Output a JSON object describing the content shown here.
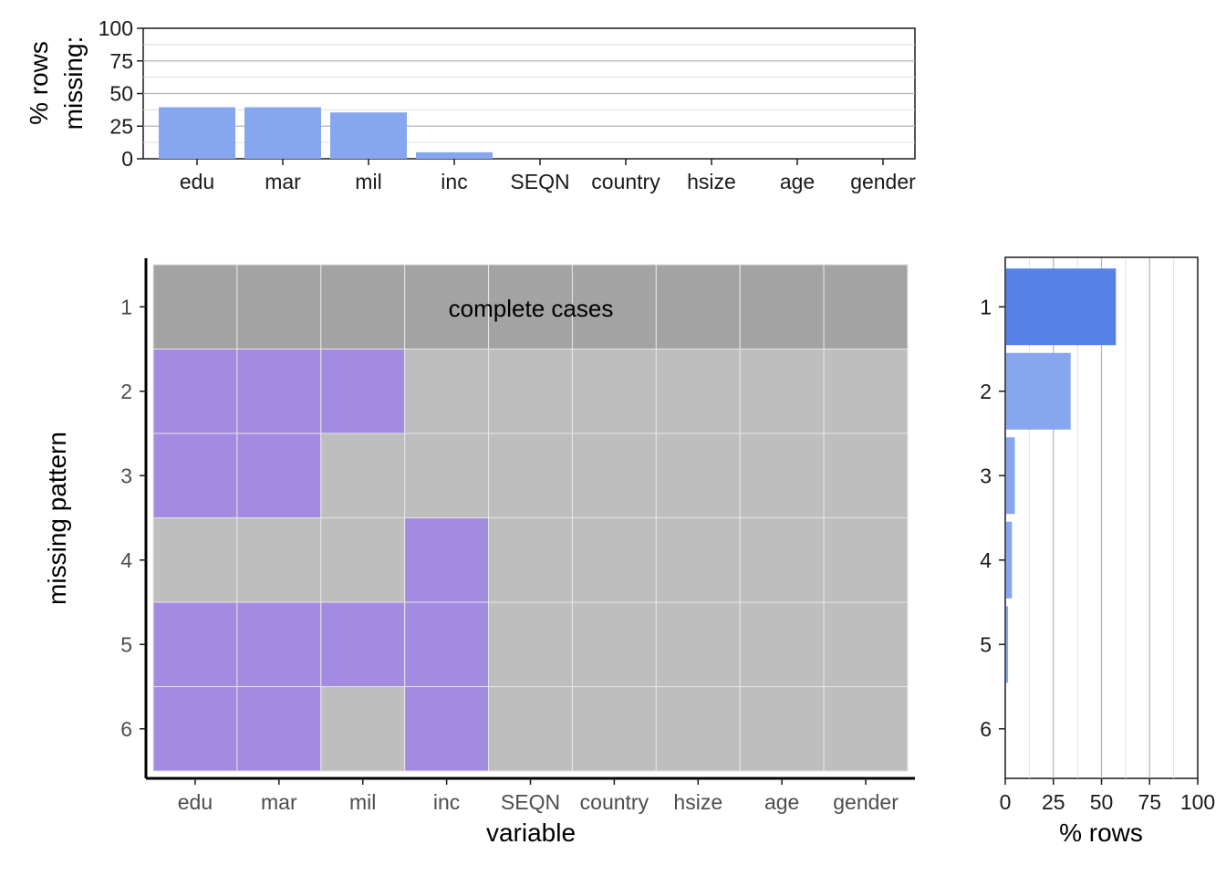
{
  "colors": {
    "bar": "#86a6ef",
    "bar_highlight": "#5581e8",
    "missing_tile": "#a48be2",
    "observed_tile": "#bebebe",
    "complete_row": "#a3a3a3",
    "grid": "#bdbdbd",
    "axis": "#1a1a1a"
  },
  "chart_data": [
    {
      "type": "bar",
      "panel": "top",
      "categories": [
        "edu",
        "mar",
        "mil",
        "inc",
        "SEQN",
        "country",
        "hsize",
        "age",
        "gender"
      ],
      "values": [
        39.5,
        39.5,
        35.5,
        5,
        0,
        0,
        0,
        0,
        0
      ],
      "ylabel": "% rows\nmissing:",
      "ylabel_line1": "% rows",
      "ylabel_line2": "missing:",
      "ylim": [
        0,
        100
      ],
      "yticks": [
        "0",
        "25",
        "50",
        "75",
        "100"
      ]
    },
    {
      "type": "heatmap",
      "panel": "main",
      "categories": [
        "edu",
        "mar",
        "mil",
        "inc",
        "SEQN",
        "country",
        "hsize",
        "age",
        "gender"
      ],
      "patterns": [
        "1",
        "2",
        "3",
        "4",
        "5",
        "6"
      ],
      "matrix": [
        [
          0,
          0,
          0,
          0,
          0,
          0,
          0,
          0,
          0
        ],
        [
          1,
          1,
          1,
          0,
          0,
          0,
          0,
          0,
          0
        ],
        [
          1,
          1,
          0,
          0,
          0,
          0,
          0,
          0,
          0
        ],
        [
          0,
          0,
          0,
          1,
          0,
          0,
          0,
          0,
          0
        ],
        [
          1,
          1,
          1,
          1,
          0,
          0,
          0,
          0,
          0
        ],
        [
          1,
          1,
          0,
          1,
          0,
          0,
          0,
          0,
          0
        ]
      ],
      "complete_cases_label": "complete cases",
      "xlabel": "variable",
      "ylabel": "missing pattern"
    },
    {
      "type": "bar",
      "panel": "right",
      "orientation": "horizontal",
      "categories": [
        "1",
        "2",
        "3",
        "4",
        "5",
        "6"
      ],
      "values": [
        57,
        33.5,
        4.5,
        3,
        1,
        0
      ],
      "highlight_index": 0,
      "xlabel": "% rows",
      "xlim": [
        0,
        100
      ],
      "xticks": [
        "0",
        "25",
        "50",
        "75",
        "100"
      ]
    }
  ]
}
